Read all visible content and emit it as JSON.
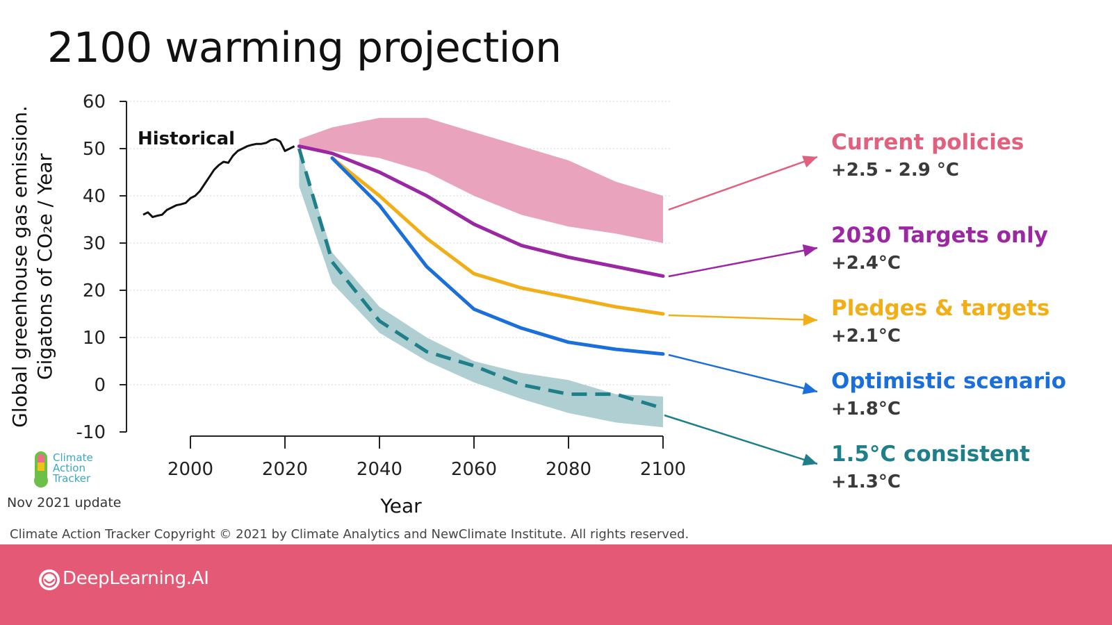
{
  "page": {
    "title": "2100 warming projection",
    "logo_text": "Climate\nAction\nTracker",
    "update_note": "Nov 2021 update",
    "copyright": "Climate Action Tracker Copyright © 2021 by Climate Analytics and NewClimate Institute. All rights reserved.",
    "brand": "DeepLearning.AI",
    "footer_color": "#e45a76"
  },
  "chart_data": {
    "type": "line",
    "title": "2100 warming projection",
    "xlabel": "Year",
    "ylabel_line1": "Global greenhouse gas emission.",
    "ylabel_line2": "Gigatons of CO₂e / Year",
    "xlim": [
      1990,
      2100
    ],
    "ylim": [
      -10,
      60
    ],
    "x_ticks": [
      2000,
      2020,
      2040,
      2060,
      2080,
      2100
    ],
    "y_ticks": [
      60,
      50,
      40,
      30,
      20,
      10,
      0,
      -10
    ],
    "grid": "horizontal dotted",
    "historical": {
      "name": "Historical",
      "color": "#111111",
      "x": [
        1990,
        1991,
        1992,
        1993,
        1994,
        1995,
        1996,
        1997,
        1998,
        1999,
        2000,
        2001,
        2002,
        2003,
        2004,
        2005,
        2006,
        2007,
        2008,
        2009,
        2010,
        2011,
        2012,
        2013,
        2014,
        2015,
        2016,
        2017,
        2018,
        2019,
        2020,
        2021,
        2022
      ],
      "y": [
        36,
        36.5,
        35.5,
        35.8,
        36,
        37,
        37.5,
        38,
        38.2,
        38.5,
        39.5,
        40,
        41,
        42.5,
        44,
        45.5,
        46.5,
        47.2,
        47,
        48.5,
        49.5,
        50,
        50.5,
        50.8,
        51,
        51,
        51.2,
        51.8,
        52,
        51.5,
        49.5,
        50,
        50.5
      ]
    },
    "series": [
      {
        "name": "Current policies",
        "temp": "+2.5 - 2.9 °C",
        "color": "#e0607e",
        "fill": "#e899b6",
        "band_x": [
          2023,
          2030,
          2040,
          2050,
          2060,
          2070,
          2080,
          2090,
          2100
        ],
        "upper": [
          52,
          54.5,
          56.5,
          56.5,
          53.5,
          50.5,
          47.5,
          43,
          40
        ],
        "lower": [
          50,
          49.5,
          48,
          45,
          40,
          36,
          33.5,
          32,
          30
        ]
      },
      {
        "name": "2030 Targets only",
        "temp": "+2.4°C",
        "color": "#9b27a3",
        "x": [
          2023,
          2030,
          2040,
          2050,
          2060,
          2070,
          2080,
          2090,
          2100
        ],
        "y": [
          50.5,
          49,
          45,
          40,
          34,
          29.5,
          27,
          25,
          23
        ]
      },
      {
        "name": "Pledges & targets",
        "temp": "+2.1°C",
        "color": "#f2ae17",
        "x": [
          2030,
          2040,
          2050,
          2060,
          2070,
          2080,
          2090,
          2100
        ],
        "y": [
          48,
          40,
          31,
          23.5,
          20.5,
          18.5,
          16.5,
          15
        ]
      },
      {
        "name": "Optimistic scenario",
        "temp": "+1.8°C",
        "color": "#1a6fdb",
        "x": [
          2030,
          2040,
          2050,
          2060,
          2070,
          2080,
          2090,
          2100
        ],
        "y": [
          48,
          38,
          25,
          16,
          12,
          9,
          7.5,
          6.5
        ]
      },
      {
        "name": "1.5°C consistent",
        "temp": "+1.3°C",
        "color": "#1e7f89",
        "fill": "#a6cacd",
        "dashed": true,
        "x": [
          2023,
          2030,
          2040,
          2050,
          2060,
          2070,
          2080,
          2090,
          2100
        ],
        "y": [
          50,
          26,
          13.5,
          7,
          4,
          0,
          -2,
          -2,
          -5
        ],
        "band_x": [
          2023,
          2030,
          2040,
          2050,
          2060,
          2070,
          2080,
          2090,
          2100
        ],
        "upper": [
          50,
          28,
          16.5,
          10,
          5,
          2.5,
          1,
          -2,
          -2.5
        ],
        "lower": [
          42,
          21.5,
          11,
          5,
          0.5,
          -3,
          -6,
          -8,
          -9
        ]
      }
    ]
  }
}
